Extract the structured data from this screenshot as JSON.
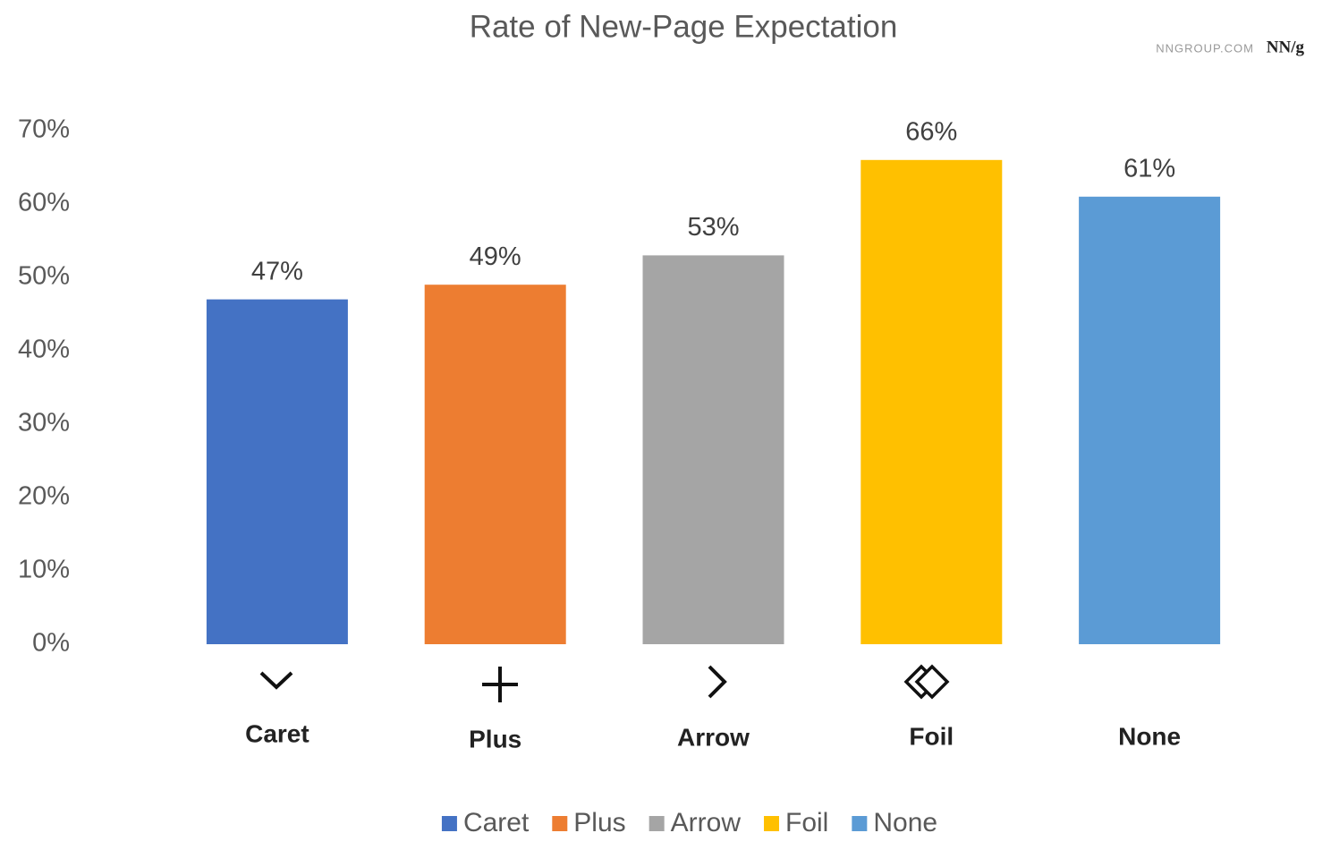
{
  "chart_data": {
    "type": "bar",
    "title": "Rate of New-Page Expectation",
    "source": "NNGROUP.COM",
    "logo": "NN/g",
    "categories": [
      "Caret",
      "Plus",
      "Arrow",
      "Foil",
      "None"
    ],
    "values": [
      47,
      49,
      53,
      66,
      61
    ],
    "value_labels": [
      "47%",
      "49%",
      "53%",
      "66%",
      "61%"
    ],
    "colors": [
      "#4472c4",
      "#ed7d31",
      "#a5a5a5",
      "#ffc000",
      "#5b9bd5"
    ],
    "ylim": [
      0,
      70
    ],
    "yticks": [
      {
        "value": 0,
        "label": "0%"
      },
      {
        "value": 10,
        "label": "10%"
      },
      {
        "value": 20,
        "label": "20%"
      },
      {
        "value": 30,
        "label": "30%"
      },
      {
        "value": 40,
        "label": "40%"
      },
      {
        "value": 50,
        "label": "50%"
      },
      {
        "value": 60,
        "label": "60%"
      },
      {
        "value": 70,
        "label": "70%"
      }
    ],
    "grid": false,
    "legend": "bottom"
  }
}
